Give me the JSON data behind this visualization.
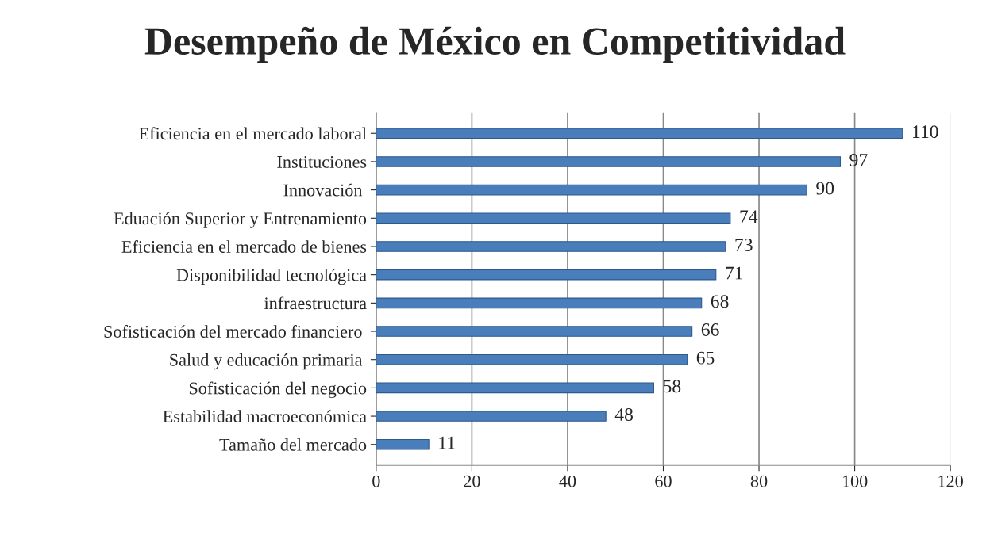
{
  "chart_data": {
    "type": "bar",
    "orientation": "horizontal",
    "title": "Desempeño de México en Competitividad",
    "categories": [
      "Eficiencia en el mercado laboral",
      "Instituciones",
      "Innovación ",
      "Eduación Superior y Entrenamiento",
      "Eficiencia en el mercado de bienes",
      "Disponibilidad tecnológica",
      "infraestructura",
      "Sofisticación del mercado financiero ",
      "Salud y educación primaria ",
      "Sofisticación del negocio",
      "Estabilidad macroeconómica",
      "Tamaño del mercado"
    ],
    "values": [
      110,
      97,
      90,
      74,
      73,
      71,
      68,
      66,
      65,
      58,
      48,
      11
    ],
    "color": "#4a7ebb",
    "xlim": [
      0,
      120
    ],
    "xticks": [
      0,
      20,
      40,
      60,
      80,
      100,
      120
    ],
    "grid": "x",
    "data_labels": true,
    "legend": false
  }
}
